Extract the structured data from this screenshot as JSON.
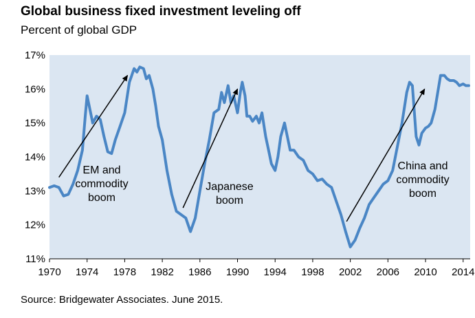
{
  "title": "Global business fixed investment leveling off",
  "subtitle": "Percent of global GDP",
  "source": "Source: Bridgewater Associates. June 2015.",
  "colors": {
    "line": "#4a86c5",
    "plot_bg": "#dbe6f2",
    "arrow": "#000000"
  },
  "chart_data": {
    "type": "line",
    "title": "Global business fixed investment leveling off",
    "subtitle": "Percent of global GDP",
    "xlabel": "",
    "ylabel": "",
    "xlim": [
      1970,
      2014.75
    ],
    "ylim": [
      11,
      17
    ],
    "y_unit": "%",
    "grid": false,
    "legend": "none",
    "x_ticks": [
      1970,
      1974,
      1978,
      1982,
      1986,
      1990,
      1994,
      1998,
      2002,
      2006,
      2010,
      2014
    ],
    "y_ticks": [
      11,
      12,
      13,
      14,
      15,
      16,
      17
    ],
    "series": [
      {
        "x": [
          1970.0,
          1970.5,
          1971.0,
          1971.5,
          1972.0,
          1972.5,
          1973.0,
          1973.5,
          1973.8,
          1974.0,
          1974.3,
          1974.6,
          1975.0,
          1975.4,
          1975.8,
          1976.2,
          1976.6,
          1977.0,
          1977.5,
          1978.0,
          1978.5,
          1979.0,
          1979.3,
          1979.6,
          1980.0,
          1980.3,
          1980.6,
          1981.0,
          1981.3,
          1981.6,
          1982.0,
          1982.5,
          1983.0,
          1983.5,
          1984.0,
          1984.5,
          1985.0,
          1985.5,
          1986.0,
          1986.5,
          1987.0,
          1987.5,
          1988.0,
          1988.3,
          1988.6,
          1989.0,
          1989.3,
          1989.6,
          1990.0,
          1990.3,
          1990.5,
          1990.8,
          1991.0,
          1991.3,
          1991.6,
          1992.0,
          1992.3,
          1992.6,
          1993.0,
          1993.3,
          1993.6,
          1994.0,
          1994.3,
          1994.6,
          1995.0,
          1995.3,
          1995.6,
          1996.0,
          1996.5,
          1997.0,
          1997.5,
          1998.0,
          1998.5,
          1999.0,
          1999.5,
          2000.0,
          2000.5,
          2001.0,
          2001.5,
          2002.0,
          2002.5,
          2003.0,
          2003.5,
          2004.0,
          2004.5,
          2005.0,
          2005.5,
          2006.0,
          2006.5,
          2007.0,
          2007.5,
          2008.0,
          2008.3,
          2008.6,
          2009.0,
          2009.3,
          2009.6,
          2010.0,
          2010.3,
          2010.6,
          2011.0,
          2011.3,
          2011.6,
          2012.0,
          2012.3,
          2012.6,
          2013.0,
          2013.3,
          2013.6,
          2014.0,
          2014.3,
          2014.6
        ],
        "values": [
          13.1,
          13.15,
          13.1,
          12.85,
          12.9,
          13.2,
          13.6,
          14.2,
          15.2,
          15.8,
          15.4,
          15.0,
          15.2,
          15.1,
          14.6,
          14.15,
          14.1,
          14.5,
          14.9,
          15.3,
          16.2,
          16.6,
          16.5,
          16.65,
          16.6,
          16.3,
          16.4,
          16.0,
          15.5,
          14.9,
          14.5,
          13.6,
          12.9,
          12.4,
          12.3,
          12.2,
          11.8,
          12.2,
          13.0,
          13.8,
          14.5,
          15.3,
          15.4,
          15.9,
          15.6,
          16.1,
          15.6,
          15.8,
          15.3,
          15.9,
          16.2,
          15.8,
          15.2,
          15.2,
          15.05,
          15.2,
          15.0,
          15.3,
          14.6,
          14.2,
          13.8,
          13.6,
          14.0,
          14.6,
          15.0,
          14.6,
          14.2,
          14.2,
          14.0,
          13.9,
          13.6,
          13.5,
          13.3,
          13.35,
          13.2,
          13.1,
          12.7,
          12.3,
          11.8,
          11.35,
          11.55,
          11.9,
          12.2,
          12.6,
          12.8,
          13.0,
          13.2,
          13.3,
          13.6,
          14.3,
          15.0,
          15.9,
          16.2,
          16.1,
          14.6,
          14.35,
          14.7,
          14.85,
          14.9,
          15.0,
          15.4,
          15.9,
          16.4,
          16.4,
          16.3,
          16.25,
          16.25,
          16.2,
          16.1,
          16.15,
          16.1,
          16.1
        ]
      }
    ],
    "annotations": [
      {
        "lines": [
          "EM and",
          "commodity",
          "boom"
        ],
        "arrow_from": [
          1971.0,
          13.4
        ],
        "arrow_to": [
          1978.3,
          16.4
        ]
      },
      {
        "lines": [
          "Japanese",
          "boom"
        ],
        "arrow_from": [
          1984.2,
          12.5
        ],
        "arrow_to": [
          1990.0,
          16.0
        ]
      },
      {
        "lines": [
          "China and",
          "commodity",
          "boom"
        ],
        "arrow_from": [
          2001.6,
          12.1
        ],
        "arrow_to": [
          2009.9,
          16.0
        ]
      }
    ]
  }
}
